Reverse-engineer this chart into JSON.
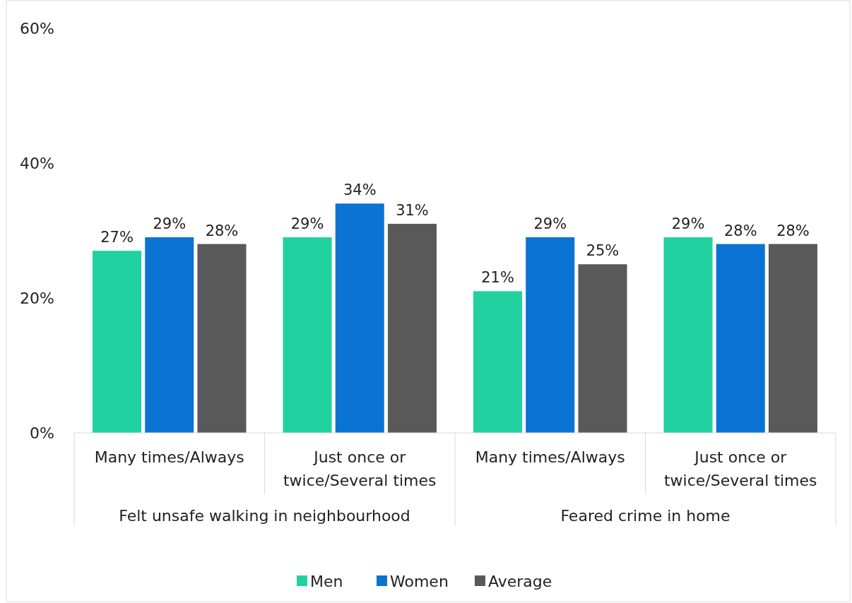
{
  "chart_data": {
    "type": "bar",
    "categories": [
      "Many times/Always",
      "Just once or twice/Several times",
      "Many times/Always",
      "Just once or twice/Several times"
    ],
    "series": [
      {
        "name": "Men",
        "color": "#21d19f",
        "values": [
          27,
          29,
          21,
          29
        ],
        "value_labels": [
          "27%",
          "29%",
          "21%",
          "29%"
        ]
      },
      {
        "name": "Women",
        "color": "#0a73d4",
        "values": [
          29,
          34,
          29,
          28
        ],
        "value_labels": [
          "29%",
          "34%",
          "29%",
          "28%"
        ]
      },
      {
        "name": "Average",
        "color": "#595959",
        "values": [
          28,
          31,
          25,
          28
        ],
        "value_labels": [
          "28%",
          "31%",
          "25%",
          "28%"
        ]
      }
    ],
    "ylim": [
      0,
      60
    ],
    "yticks": [
      {
        "value": 0,
        "label": "0%"
      },
      {
        "value": 20,
        "label": "20%"
      },
      {
        "value": 40,
        "label": "40%"
      },
      {
        "value": 60,
        "label": "60%"
      }
    ],
    "legend": "bottom",
    "grid": false,
    "annotations": [
      "Felt unsafe walking in neighbourhood",
      "Feared crime in home"
    ]
  }
}
